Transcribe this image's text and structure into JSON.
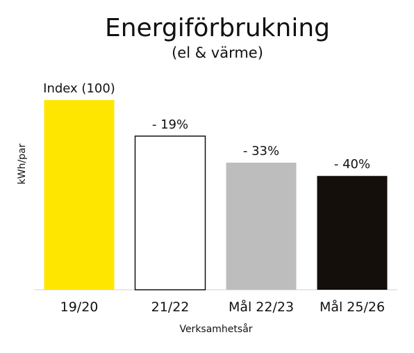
{
  "chart_data": {
    "type": "bar",
    "title": "Energiförbrukning",
    "subtitle": "(el & värme)",
    "xlabel": "Verksamhetsår",
    "ylabel": "kWh/par",
    "categories": [
      "19/20",
      "21/22",
      "Mål 22/23",
      "Mål 25/26"
    ],
    "values": [
      100,
      81,
      67,
      60
    ],
    "data_labels": [
      "Index (100)",
      "- 19%",
      "- 33%",
      "- 40%"
    ],
    "ylim": [
      0,
      100
    ],
    "grid": false,
    "legend": "none",
    "colors": [
      "#ffe600",
      "#ffffff",
      "#bdbdbd",
      "#150f0c"
    ]
  }
}
